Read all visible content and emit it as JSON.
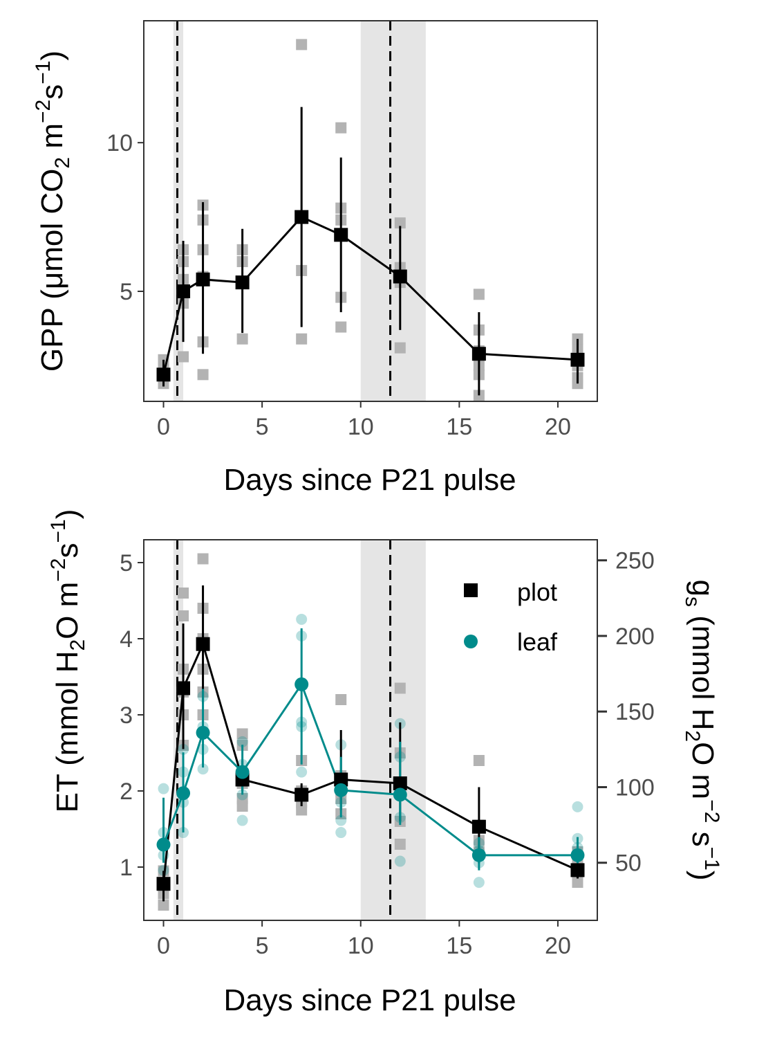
{
  "colors": {
    "plot": "#000000",
    "leaf": "#008b8b",
    "raw_plot": "#b3b3b3",
    "band": "#e5e5e5"
  },
  "chart_data": [
    {
      "id": "gpp",
      "type": "line",
      "xlabel": "Days since P21 pulse",
      "ylabel": {
        "prefix": "GPP (μmol CO",
        "sub": "2",
        "mid": " m",
        "sup1": "−2",
        "mid2": "s",
        "sup2": "−1",
        "suffix": ")"
      },
      "xlim": [
        -1,
        22
      ],
      "ylim": [
        1.3,
        14.1
      ],
      "xticks": [
        0,
        5,
        10,
        15,
        20
      ],
      "xtick_labels": [
        "0",
        "5",
        "10",
        "15",
        "20"
      ],
      "yticks": [
        5,
        10
      ],
      "ytick_labels": [
        "5",
        "10"
      ],
      "shaded_bands": [
        [
          0.5,
          1.0
        ],
        [
          10.0,
          13.3
        ]
      ],
      "vlines": [
        0.7,
        11.5
      ],
      "series": [
        {
          "key": "plot",
          "x": [
            0,
            1,
            2,
            4,
            7,
            9,
            12,
            16,
            21
          ],
          "y": [
            2.2,
            5.0,
            5.4,
            5.3,
            7.5,
            6.9,
            5.5,
            2.9,
            2.7
          ],
          "err_low": [
            1.8,
            3.3,
            2.9,
            3.6,
            3.8,
            4.3,
            3.7,
            1.5,
            1.9
          ],
          "err_high": [
            2.7,
            6.7,
            8.0,
            7.1,
            11.2,
            9.5,
            7.2,
            4.3,
            3.4
          ]
        }
      ],
      "raw_points": [
        {
          "x": 0,
          "y": [
            1.9,
            2.2,
            2.4,
            2.7
          ]
        },
        {
          "x": 1,
          "y": [
            2.8,
            4.6,
            5.0,
            5.4,
            6.0,
            6.4
          ]
        },
        {
          "x": 2,
          "y": [
            2.2,
            3.3,
            5.5,
            6.4,
            7.4,
            7.9
          ]
        },
        {
          "x": 4,
          "y": [
            3.4,
            5.3,
            6.0,
            6.4
          ]
        },
        {
          "x": 7,
          "y": [
            3.4,
            5.7,
            7.5,
            13.3
          ]
        },
        {
          "x": 9,
          "y": [
            3.8,
            4.8,
            6.9,
            7.4,
            7.8,
            10.5
          ]
        },
        {
          "x": 12,
          "y": [
            3.1,
            5.3,
            5.8,
            7.3
          ]
        },
        {
          "x": 16,
          "y": [
            1.5,
            2.2,
            2.5,
            3.0,
            3.7,
            4.9
          ]
        },
        {
          "x": 21,
          "y": [
            1.9,
            2.1,
            2.5,
            3.1,
            3.4
          ]
        }
      ]
    },
    {
      "id": "et",
      "type": "line",
      "xlabel": "Days since P21 pulse",
      "ylabel": {
        "prefix": "ET (mmol H",
        "sub": "2",
        "mid": "O m",
        "sup1": "−2",
        "mid2": "s",
        "sup2": "−1",
        "suffix": ")"
      },
      "y2label": {
        "g": "g",
        "gsub": "s",
        "prefix": " (mmol H",
        "sub": "2",
        "mid": "O m",
        "sup1": "−2",
        "mid2": " s",
        "sup2": "−1",
        "suffix": ")"
      },
      "xlim": [
        -1,
        22
      ],
      "ylim": [
        0.3,
        5.3
      ],
      "y2lim": [
        11.9,
        263.6
      ],
      "xticks": [
        0,
        5,
        10,
        15,
        20
      ],
      "xtick_labels": [
        "0",
        "5",
        "10",
        "15",
        "20"
      ],
      "yticks": [
        1,
        2,
        3,
        4,
        5
      ],
      "ytick_labels": [
        "1",
        "2",
        "3",
        "4",
        "5"
      ],
      "y2ticks": [
        50,
        100,
        150,
        200,
        250
      ],
      "y2tick_labels": [
        "50",
        "100",
        "150",
        "200",
        "250"
      ],
      "shaded_bands": [
        [
          0.5,
          1.0
        ],
        [
          10.0,
          13.3
        ]
      ],
      "vlines": [
        0.7,
        11.5
      ],
      "legend": {
        "placement": "top-right",
        "items": [
          {
            "key": "plot",
            "label": "plot",
            "shape": "square"
          },
          {
            "key": "leaf",
            "label": "leaf",
            "shape": "circle"
          }
        ]
      },
      "series": [
        {
          "key": "plot",
          "axis": "left",
          "x": [
            0,
            1,
            2,
            4,
            7,
            9,
            12,
            16,
            21
          ],
          "y": [
            0.78,
            3.35,
            3.93,
            2.15,
            1.95,
            2.15,
            2.1,
            1.53,
            0.96
          ],
          "err_low": [
            0.55,
            2.55,
            3.15,
            2.0,
            1.8,
            1.75,
            1.6,
            1.05,
            0.85
          ],
          "err_high": [
            0.95,
            4.2,
            4.7,
            2.4,
            2.1,
            2.8,
            2.9,
            2.05,
            1.05
          ]
        },
        {
          "key": "leaf",
          "axis": "right",
          "x": [
            0,
            1,
            2,
            4,
            7,
            9,
            12,
            16,
            21
          ],
          "y": [
            62,
            96,
            136,
            110,
            168,
            98,
            95,
            55,
            55
          ],
          "err_low": [
            50,
            70,
            113,
            95,
            115,
            80,
            75,
            45,
            48
          ],
          "err_high": [
            93,
            123,
            165,
            128,
            205,
            120,
            130,
            67,
            67
          ]
        }
      ],
      "raw_points": [
        {
          "key": "plot",
          "x": 0,
          "y": [
            0.5,
            0.65,
            0.78,
            0.95
          ]
        },
        {
          "key": "plot",
          "x": 1,
          "y": [
            2.6,
            3.0,
            3.3,
            3.6,
            4.3,
            4.6
          ]
        },
        {
          "key": "plot",
          "x": 2,
          "y": [
            3.0,
            3.3,
            3.6,
            4.0,
            4.4,
            5.05
          ]
        },
        {
          "key": "plot",
          "x": 4,
          "y": [
            1.8,
            1.9,
            2.1,
            2.6,
            2.75
          ]
        },
        {
          "key": "plot",
          "x": 7,
          "y": [
            1.75,
            1.85,
            2.0,
            2.4
          ]
        },
        {
          "key": "plot",
          "x": 9,
          "y": [
            1.7,
            1.9,
            2.0,
            2.2,
            3.2
          ]
        },
        {
          "key": "plot",
          "x": 12,
          "y": [
            1.3,
            1.6,
            2.0,
            2.5,
            3.35
          ]
        },
        {
          "key": "plot",
          "x": 16,
          "y": [
            1.2,
            1.35,
            1.55,
            2.4
          ]
        },
        {
          "key": "plot",
          "x": 21,
          "y": [
            0.8,
            0.9,
            1.0,
            1.1,
            1.2
          ]
        },
        {
          "key": "leaf",
          "x": 0,
          "y": [
            45,
            55,
            70,
            99
          ]
        },
        {
          "key": "leaf",
          "x": 1,
          "y": [
            70,
            90,
            110,
            125
          ]
        },
        {
          "key": "leaf",
          "x": 2,
          "y": [
            112,
            125,
            140,
            160
          ]
        },
        {
          "key": "leaf",
          "x": 4,
          "y": [
            78,
            95,
            115,
            130
          ]
        },
        {
          "key": "leaf",
          "x": 7,
          "y": [
            110,
            140,
            143,
            200,
            211
          ]
        },
        {
          "key": "leaf",
          "x": 9,
          "y": [
            70,
            78,
            90,
            105,
            128
          ]
        },
        {
          "key": "leaf",
          "x": 12,
          "y": [
            51,
            80,
            100,
            120,
            142
          ]
        },
        {
          "key": "leaf",
          "x": 16,
          "y": [
            37,
            50,
            58,
            63
          ]
        },
        {
          "key": "leaf",
          "x": 21,
          "y": [
            45,
            60,
            66,
            87
          ]
        }
      ]
    }
  ]
}
